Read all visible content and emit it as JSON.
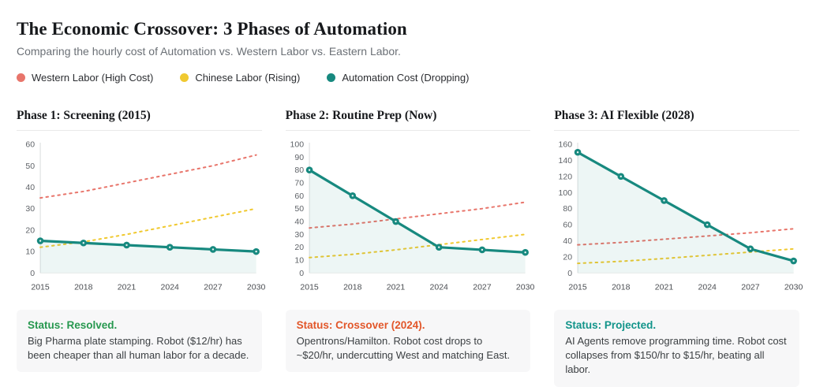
{
  "header": {
    "title": "The Economic Crossover: 3 Phases of Automation",
    "subtitle": "Comparing the hourly cost of Automation vs. Western Labor vs. Eastern Labor."
  },
  "legend": {
    "items": [
      {
        "label": "Western Labor (High Cost)",
        "color": "#e8756b"
      },
      {
        "label": "Chinese Labor (Rising)",
        "color": "#f0c930"
      },
      {
        "label": "Automation Cost (Dropping)",
        "color": "#17897f"
      }
    ]
  },
  "chart_data": [
    {
      "type": "line",
      "title": "Phase 1: Screening (2015)",
      "categories": [
        2015,
        2018,
        2021,
        2024,
        2027,
        2030
      ],
      "series": [
        {
          "name": "Western Labor (High Cost)",
          "color": "#e8756b",
          "style": "dashed",
          "markers": false,
          "area": false,
          "values": [
            35,
            38,
            42,
            46,
            50,
            55
          ]
        },
        {
          "name": "Chinese Labor (Rising)",
          "color": "#f0c930",
          "style": "dashed",
          "markers": false,
          "area": false,
          "values": [
            12,
            14.5,
            18,
            22,
            26,
            30
          ]
        },
        {
          "name": "Automation Cost (Dropping)",
          "color": "#17897f",
          "style": "solid",
          "markers": true,
          "area": true,
          "values": [
            15,
            14,
            13,
            12,
            11,
            10
          ]
        }
      ],
      "xlabel": "",
      "ylabel": "",
      "ylim": [
        0,
        60
      ],
      "yticks": [
        0,
        10,
        20,
        30,
        40,
        50,
        60
      ],
      "grid": false,
      "status": {
        "label": "Status: Resolved.",
        "color": "#27984f",
        "text": "Big Pharma plate stamping. Robot ($12/hr) has been cheaper than all human labor for a decade."
      }
    },
    {
      "type": "line",
      "title": "Phase 2: Routine Prep (Now)",
      "categories": [
        2015,
        2018,
        2021,
        2024,
        2027,
        2030
      ],
      "series": [
        {
          "name": "Western Labor (High Cost)",
          "color": "#e8756b",
          "style": "dashed",
          "markers": false,
          "area": false,
          "values": [
            35,
            38,
            42,
            46,
            50,
            55
          ]
        },
        {
          "name": "Chinese Labor (Rising)",
          "color": "#f0c930",
          "style": "dashed",
          "markers": false,
          "area": false,
          "values": [
            12,
            14.5,
            18,
            22,
            26,
            30
          ]
        },
        {
          "name": "Automation Cost (Dropping)",
          "color": "#17897f",
          "style": "solid",
          "markers": true,
          "area": true,
          "values": [
            80,
            60,
            40,
            20,
            18,
            16
          ]
        }
      ],
      "xlabel": "",
      "ylabel": "",
      "ylim": [
        0,
        100
      ],
      "yticks": [
        0,
        10,
        20,
        30,
        40,
        50,
        60,
        70,
        80,
        90,
        100
      ],
      "grid": false,
      "status": {
        "label": "Status: Crossover (2024).",
        "color": "#e2572a",
        "text": "Opentrons/Hamilton. Robot cost drops to ~$20/hr, undercutting West and matching East."
      }
    },
    {
      "type": "line",
      "title": "Phase 3: AI Flexible (2028)",
      "categories": [
        2015,
        2018,
        2021,
        2024,
        2027,
        2030
      ],
      "series": [
        {
          "name": "Western Labor (High Cost)",
          "color": "#e8756b",
          "style": "dashed",
          "markers": false,
          "area": false,
          "values": [
            35,
            38,
            42,
            46,
            50,
            55
          ]
        },
        {
          "name": "Chinese Labor (Rising)",
          "color": "#f0c930",
          "style": "dashed",
          "markers": false,
          "area": false,
          "values": [
            12,
            14.5,
            18,
            22,
            26,
            30
          ]
        },
        {
          "name": "Automation Cost (Dropping)",
          "color": "#17897f",
          "style": "solid",
          "markers": true,
          "area": true,
          "values": [
            150,
            120,
            90,
            60,
            30,
            15
          ]
        }
      ],
      "xlabel": "",
      "ylabel": "",
      "ylim": [
        0,
        160
      ],
      "yticks": [
        0,
        20,
        40,
        60,
        80,
        100,
        120,
        140,
        160
      ],
      "grid": false,
      "status": {
        "label": "Status: Projected.",
        "color": "#12948a",
        "text": "AI Agents remove programming time. Robot cost collapses from $150/hr to $15/hr, beating all labor."
      }
    }
  ]
}
